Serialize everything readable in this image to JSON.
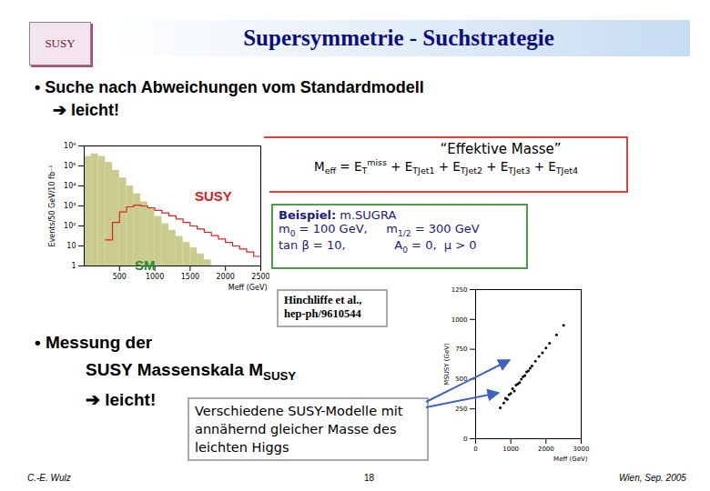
{
  "slide": {
    "logo": "SUSY",
    "title": "Supersymmetrie - Suchstrategie",
    "bullet": "•",
    "bullet1": "Suche nach Abweichungen vom Standardmodell",
    "result1": "➔ leicht!",
    "formula_title": "“Effektive Masse”",
    "formula": [
      "M",
      {
        "sub": "eff"
      },
      " = E",
      {
        "sub": "T"
      },
      {
        "sup": "miss"
      },
      " + E",
      {
        "sub": "TJet1"
      },
      " + E",
      {
        "sub": "TJet2"
      },
      " + E",
      {
        "sub": "TJet3"
      },
      " + E",
      {
        "sub": "TJet4"
      }
    ],
    "example_title": "Beispiel:",
    "example_model": "m.SUGRA",
    "example_lines": [
      [
        "m",
        {
          "sub": "0"
        },
        " = 100 GeV,     m",
        {
          "sub": "1/2"
        },
        " = 300 GeV"
      ],
      [
        "tan β = 10,             A",
        {
          "sub": "0"
        },
        " = 0,  μ > 0"
      ]
    ],
    "reference": [
      "Hinchliffe et al.,",
      "hep-ph/9610544"
    ],
    "bullet2_lines": [
      [
        "Messung der"
      ],
      [
        "SUSY Massenskala M",
        {
          "sub": "SUSY"
        }
      ]
    ],
    "result2": "➔ leicht!",
    "note": "Verschiedene SUSY-Modelle mit annähernd gleicher Masse des leichten Higgs",
    "footer": {
      "author": "C.-E. Wulz",
      "page": "18",
      "place_date": "Wien, Sep. 2005"
    }
  },
  "chart_data": [
    {
      "type": "histogram",
      "xlabel": "Meff (GeV)",
      "ylabel": "Events/50 GeV/10 fb⁻¹",
      "log": "y",
      "xlim": [
        0,
        2500
      ],
      "xticks": [
        500,
        1000,
        1500,
        2000,
        2500
      ],
      "ylim": [
        1,
        1000000
      ],
      "yticks": [
        1,
        10,
        {
          "value": 100,
          "label": "10²"
        },
        {
          "value": 1000,
          "label": "10³"
        },
        {
          "value": 10000,
          "label": "10⁴"
        },
        {
          "value": 100000,
          "label": "10⁵"
        },
        {
          "value": 1000000,
          "label": "10⁶"
        }
      ],
      "bins": [
        0,
        100,
        200,
        300,
        400,
        500,
        600,
        700,
        800,
        900,
        1000,
        1100,
        1200,
        1300,
        1400,
        1500,
        1600,
        1700,
        1800,
        1900,
        2000,
        2100,
        2200,
        2300,
        2400,
        2500
      ],
      "series": [
        {
          "name": "SM",
          "type": "bar",
          "color": "#c9cc8e",
          "values": [
            300000,
            400000,
            300000,
            150000,
            60000,
            25000,
            10000,
            4000,
            1600,
            700,
            300,
            130,
            60,
            30,
            15,
            8,
            4,
            2,
            null,
            null,
            null,
            null,
            null,
            null,
            null
          ]
        },
        {
          "name": "SUSY",
          "type": "line",
          "color": "#e02020",
          "values": [
            null,
            null,
            null,
            20,
            150,
            500,
            900,
            1100,
            1000,
            800,
            600,
            450,
            320,
            220,
            150,
            100,
            70,
            48,
            33,
            22,
            15,
            10,
            7,
            5,
            3
          ]
        }
      ]
    },
    {
      "type": "scatter",
      "xlabel": "Meff (GeV)",
      "ylabel": "MSUSY (GeV)",
      "xlim": [
        0,
        3000
      ],
      "xticks": [
        0,
        1000,
        2000,
        3000
      ],
      "ylim": [
        0,
        1250
      ],
      "yticks": [
        0,
        250,
        500,
        750,
        1000,
        1250
      ],
      "color": "#000000",
      "marker": "dot",
      "x": [
        700,
        800,
        850,
        900,
        950,
        1000,
        1050,
        1100,
        1150,
        1200,
        1250,
        1300,
        1350,
        1400,
        1450,
        1500,
        1550,
        1600,
        1700,
        1800,
        1900,
        2000,
        2100,
        2300,
        2500
      ],
      "y": [
        260,
        300,
        340,
        330,
        370,
        380,
        420,
        400,
        450,
        460,
        470,
        500,
        520,
        530,
        560,
        570,
        590,
        610,
        650,
        690,
        720,
        760,
        800,
        870,
        950
      ]
    }
  ]
}
